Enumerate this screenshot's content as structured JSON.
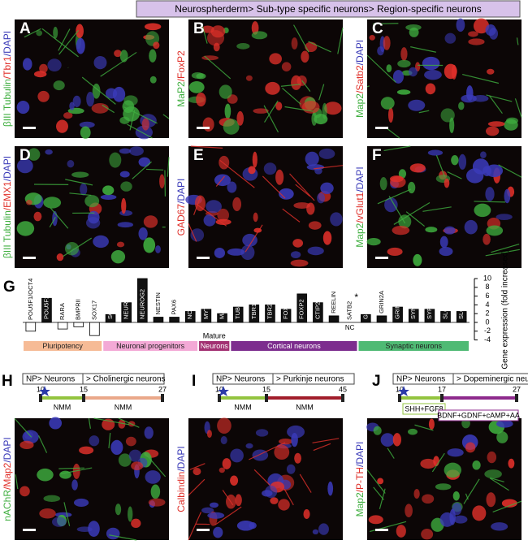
{
  "header": {
    "title": "Neurospherderm> Sub-type specific neurons> Region-specific neurons"
  },
  "panels": [
    {
      "letter": "A",
      "label": [
        {
          "text": "βIII Tubulin",
          "color": "#3fae3f"
        },
        {
          "text": "/Tbr1",
          "color": "#e0302a"
        },
        {
          "text": "/DAPI",
          "color": "#3a3ab8"
        }
      ]
    },
    {
      "letter": "B",
      "label": [
        {
          "text": "MaP2",
          "color": "#3fae3f"
        },
        {
          "text": "/FoxP2",
          "color": "#e0302a"
        }
      ]
    },
    {
      "letter": "C",
      "label": [
        {
          "text": "Map2",
          "color": "#3fae3f"
        },
        {
          "text": "/Satb2",
          "color": "#e0302a"
        },
        {
          "text": "/DAPI",
          "color": "#3a3ab8"
        }
      ]
    },
    {
      "letter": "D",
      "label": [
        {
          "text": "βIII Tubulin",
          "color": "#3fae3f"
        },
        {
          "text": "/EMX1",
          "color": "#e0302a"
        },
        {
          "text": "/DAPI",
          "color": "#3a3ab8"
        }
      ]
    },
    {
      "letter": "E",
      "label": [
        {
          "text": "GAD67",
          "color": "#e0302a"
        },
        {
          "text": "/DAPI",
          "color": "#3a3ab8"
        }
      ]
    },
    {
      "letter": "F",
      "label": [
        {
          "text": "Map2",
          "color": "#3fae3f"
        },
        {
          "text": "/vGlut1",
          "color": "#e0302a"
        },
        {
          "text": "/DAPI",
          "color": "#3a3ab8"
        }
      ]
    },
    {
      "label": [
        {
          "text": "nAChR",
          "color": "#3fae3f"
        },
        {
          "text": "/Map2",
          "color": "#e0302a"
        },
        {
          "text": "/DAPI",
          "color": "#3a3ab8"
        }
      ]
    },
    {
      "label": [
        {
          "text": "Calbindin",
          "color": "#e0302a"
        },
        {
          "text": "/DAPI",
          "color": "#3a3ab8"
        }
      ]
    },
    {
      "label": [
        {
          "text": "Map2",
          "color": "#3fae3f"
        },
        {
          "text": "/P-TH",
          "color": "#e0302a"
        },
        {
          "text": "/DAPI",
          "color": "#3a3ab8"
        }
      ]
    }
  ],
  "chart_data": {
    "type": "bar",
    "letter": "G",
    "categories": [
      "POU5F1/OCT4",
      "POU5F2",
      "RARA",
      "BMPRII",
      "SOX17",
      "SOX2",
      "NEUROD1",
      "NEUROG2",
      "NESTIN",
      "PAX6",
      "NOTCH1",
      "MYT1",
      "MAP2",
      "TUBB3",
      "TBR1",
      "TBR2",
      "FOXG1",
      "FOXP2",
      "CTIP2",
      "REELIN",
      "SATB2",
      "GRIN1",
      "GRIN2A",
      "GRIN2B",
      "SYN1",
      "SYP",
      "SLC17A6",
      "SLC17A7"
    ],
    "values": [
      -2,
      5.5,
      -1.5,
      -1,
      -3,
      1.8,
      4.5,
      10,
      1.2,
      1.2,
      2.5,
      3,
      2,
      3.5,
      4,
      4,
      3,
      6.5,
      4.5,
      1.5,
      0,
      1.8,
      1.5,
      3.5,
      3,
      3,
      2.5,
      2.5
    ],
    "color": "#111111",
    "negative_color": "#ffffff",
    "ylim": [
      -4,
      10
    ],
    "yticks": [
      -4,
      -2,
      0,
      2,
      4,
      6,
      8,
      10
    ],
    "y_label": "Gene expression (fold increased)",
    "nc_label": "NC",
    "asterisk": "*",
    "group_note": "Mature",
    "groups": [
      {
        "label": "Pluripotency",
        "color": "#f6bb96"
      },
      {
        "label": "Neuronal progenitors",
        "color": "#f3a9d6"
      },
      {
        "label": "Neurons",
        "color": "#a23072"
      },
      {
        "label": "Cortical neurons",
        "color": "#7d2d8e"
      },
      {
        "label": "Synaptic neurons",
        "color": "#4fba74"
      }
    ]
  },
  "timelines": [
    {
      "letter": "H",
      "stage": "NP> Neurons",
      "target": "> Cholinergic neurons",
      "days": [
        10,
        15,
        27
      ],
      "phases": [
        {
          "label": "NMM",
          "color": "#93c43f"
        },
        {
          "label": "NMM",
          "color": "#eaa88a"
        }
      ]
    },
    {
      "letter": "I",
      "stage": "NP> Neurons",
      "target": "> Purkinje neurons",
      "days": [
        10,
        15,
        45
      ],
      "phases": [
        {
          "label": "NMM",
          "color": "#93c43f"
        },
        {
          "label": "NMM",
          "color": "#a11d2b"
        }
      ]
    },
    {
      "letter": "J",
      "stage": "NP> Neurons",
      "target": "> Dopeminergic neurons",
      "days": [
        10,
        17,
        27
      ],
      "boxed": true,
      "phases": [
        {
          "label": "SHH+FGF8",
          "color": "#93c43f"
        },
        {
          "label": "BDNF+GDNF+cAMP+AA",
          "color": "#8e2a8d"
        }
      ]
    }
  ]
}
